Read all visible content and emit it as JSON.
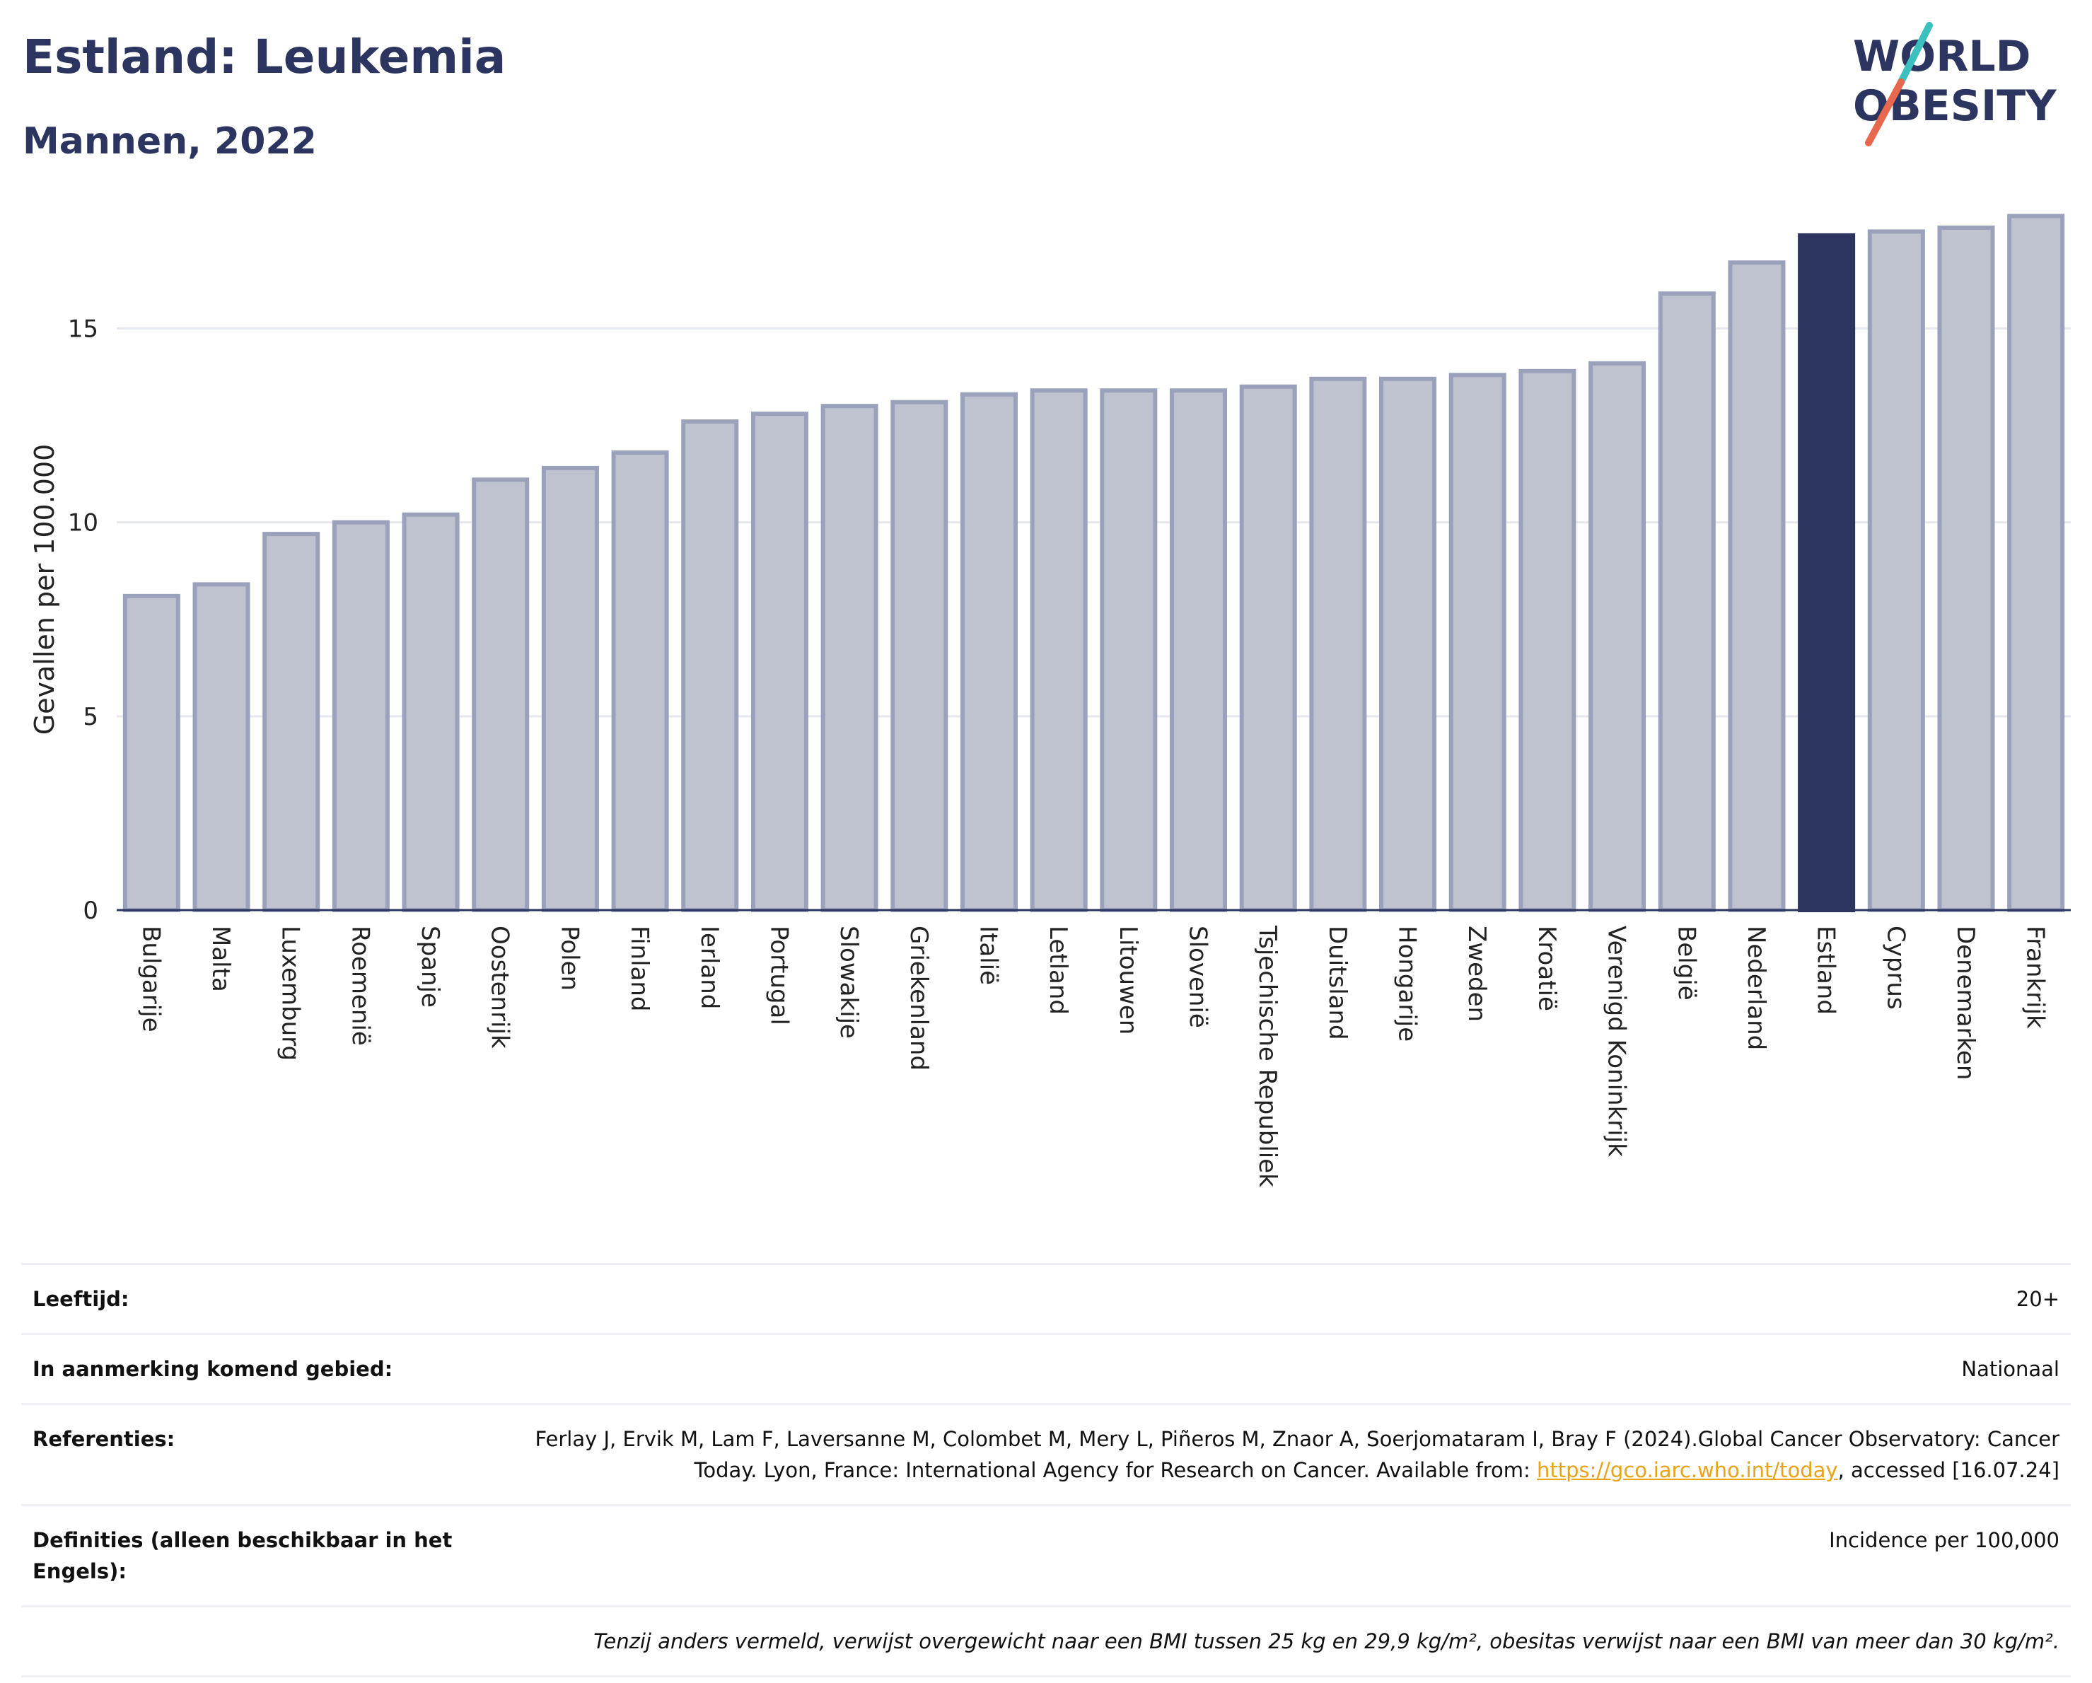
{
  "header": {
    "title": "Estland: Leukemia",
    "subtitle": "Mannen, 2022"
  },
  "logo": {
    "line1": "WORLD",
    "line2": "OBESITY",
    "colors": {
      "text": "#2b3560",
      "slash_top": "#3bbfbf",
      "slash_bottom": "#e8674f"
    }
  },
  "chart_data": {
    "type": "bar",
    "ylabel": "Gevallen per 100.000",
    "xlabel": "",
    "ylim": [
      0,
      18
    ],
    "yticks": [
      0,
      5,
      10,
      15
    ],
    "grid": true,
    "highlight": "Estland",
    "colors": {
      "bar": "#bfc3d0",
      "bar_stroke": "#9aa1ba",
      "highlight": "#2b3560"
    },
    "categories": [
      "Bulgarije",
      "Malta",
      "Luxemburg",
      "Roemenië",
      "Spanje",
      "Oostenrijk",
      "Polen",
      "Finland",
      "Ierland",
      "Portugal",
      "Slowakije",
      "Griekenland",
      "Italië",
      "Letland",
      "Litouwen",
      "Slovenië",
      "Tsjechische Republiek",
      "Duitsland",
      "Hongarije",
      "Zweden",
      "Kroatië",
      "Verenigd Koninkrijk",
      "België",
      "Nederland",
      "Estland",
      "Cyprus",
      "Denemarken",
      "Frankrijk"
    ],
    "values": [
      8.1,
      8.4,
      9.7,
      10.0,
      10.2,
      11.1,
      11.4,
      11.8,
      12.6,
      12.8,
      13.0,
      13.1,
      13.3,
      13.4,
      13.4,
      13.4,
      13.5,
      13.7,
      13.7,
      13.8,
      13.9,
      14.1,
      15.9,
      16.7,
      17.4,
      17.5,
      17.6,
      17.9
    ]
  },
  "info": {
    "age_label": "Leeftijd:",
    "age_value": "20+",
    "area_label": "In aanmerking komend gebied:",
    "area_value": "Nationaal",
    "ref_label": "Referenties:",
    "ref_text_1": "Ferlay J, Ervik M, Lam F, Laversanne M, Colombet M, Mery L, Piñeros M, Znaor A, Soerjomataram I, Bray F (2024).Global Cancer Observatory: Cancer Today. Lyon, France: International Agency for Research on Cancer. Available from: ",
    "ref_link": "https://gco.iarc.who.int/today",
    "ref_text_2": ", accessed [16.07.24]",
    "def_label": "Definities (alleen beschikbaar in het Engels):",
    "def_value": "Incidence per 100,000",
    "note": "Tenzij anders vermeld, verwijst overgewicht naar een BMI tussen 25 kg en 29,9 kg/m², obesitas verwijst naar een BMI van meer dan 30 kg/m²."
  }
}
